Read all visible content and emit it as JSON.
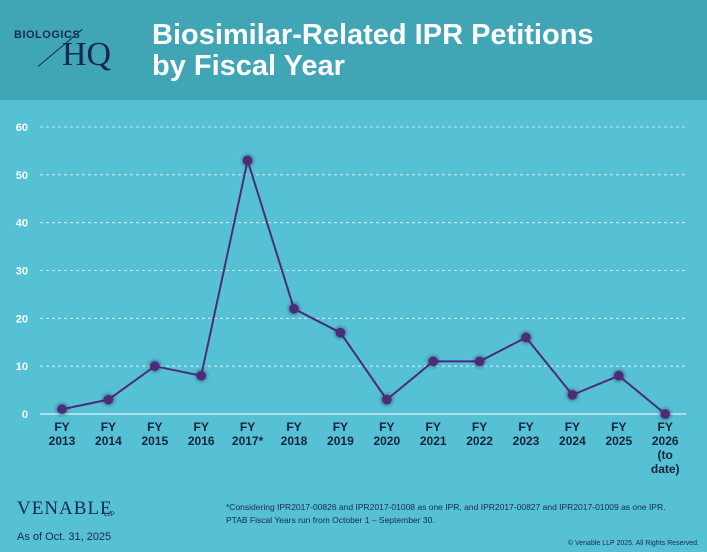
{
  "logo": {
    "small_text": "BIOLOGICS",
    "large_text": "HQ"
  },
  "title_line1": "Biosimilar-Related IPR Petitions",
  "title_line2": "by Fiscal Year",
  "chart_data": {
    "type": "line",
    "title": "Biosimilar-Related IPR Petitions by Fiscal Year",
    "categories": [
      [
        "FY",
        "2013"
      ],
      [
        "FY",
        "2014"
      ],
      [
        "FY",
        "2015"
      ],
      [
        "FY",
        "2016"
      ],
      [
        "FY",
        "2017*"
      ],
      [
        "FY",
        "2018"
      ],
      [
        "FY",
        "2019"
      ],
      [
        "FY",
        "2020"
      ],
      [
        "FY",
        "2021"
      ],
      [
        "FY",
        "2022"
      ],
      [
        "FY",
        "2023"
      ],
      [
        "FY",
        "2024"
      ],
      [
        "FY",
        "2025"
      ],
      [
        "FY",
        "2026",
        "(to",
        "date)"
      ]
    ],
    "values": [
      1,
      3,
      10,
      8,
      53,
      22,
      17,
      3,
      11,
      11,
      16,
      4,
      8,
      0
    ],
    "ylim": [
      0,
      60
    ],
    "yticks": [
      0,
      10,
      20,
      30,
      40,
      50,
      60
    ],
    "grid": true,
    "legend": "none",
    "colors": {
      "line": "#4b2b7a",
      "marker": "#4b2b7a",
      "gridline": "#ffffff"
    }
  },
  "footer": {
    "brand": "VENABLE",
    "brand_suffix": "LLP",
    "as_of": "As of Oct. 31, 2025",
    "footnote_line1": "*Considering IPR2017-00826 and IPR2017-01008 as one IPR, and IPR2017-00827 and IPR2017-01009 as one IPR.",
    "footnote_line2": "PTAB Fiscal Years run from October 1 – September 30.",
    "copyright": "© Venable LLP 2025. All Rights Reserved."
  }
}
